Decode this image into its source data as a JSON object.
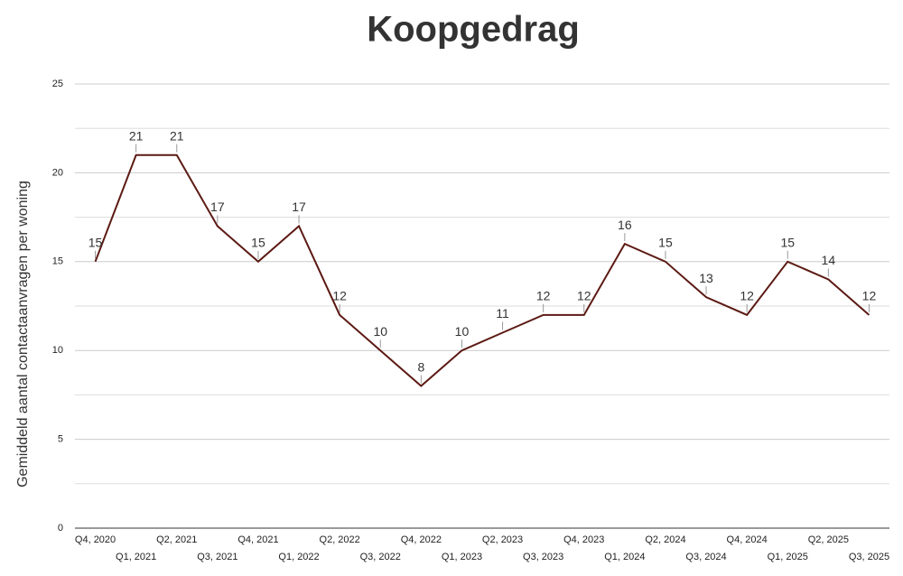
{
  "chart_data": {
    "type": "line",
    "title": "Koopgedrag",
    "y_label": "Gemiddeld aantal contactaanvragen per woning",
    "categories": [
      "Q4, 2020",
      "Q1, 2021",
      "Q2, 2021",
      "Q3, 2021",
      "Q4, 2021",
      "Q1, 2022",
      "Q2, 2022",
      "Q3, 2022",
      "Q4, 2022",
      "Q1, 2023",
      "Q2, 2023",
      "Q3, 2023",
      "Q4, 2023",
      "Q1, 2024",
      "Q2, 2024",
      "Q3, 2024",
      "Q4, 2024",
      "Q1, 2025",
      "Q2, 2025",
      "Q3, 2025"
    ],
    "series": [
      {
        "name": "Gemiddeld aantal contactaanvragen per woning",
        "color": "#5c1a14",
        "values": [
          15,
          21,
          21,
          17,
          15,
          17,
          12,
          10,
          8,
          10,
          11,
          12,
          12,
          16,
          15,
          13,
          12,
          15,
          14,
          12
        ]
      }
    ],
    "ylim": [
      0,
      25
    ],
    "yticks": [
      0,
      5,
      10,
      15,
      20,
      25
    ],
    "y_minor_ticks": [
      2.5,
      7.5,
      12.5,
      17.5,
      22.5
    ],
    "grid": true,
    "data_labels": true
  }
}
